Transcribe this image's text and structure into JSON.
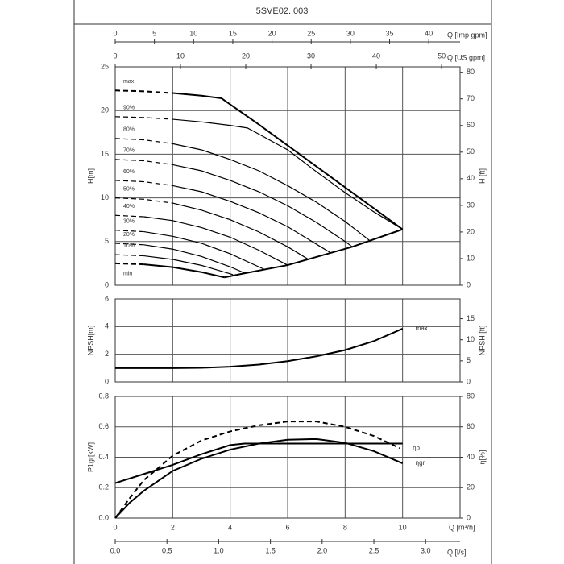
{
  "title": "5SVE02..003",
  "chart_data": [
    {
      "type": "line",
      "color": "#000000",
      "grid": true,
      "ylabel": "H[m]",
      "y2label": "H [ft]",
      "xlim": [
        0,
        12
      ],
      "xticks": [
        0,
        2,
        4,
        6,
        8,
        10
      ],
      "show_xtick_labels": false,
      "ylim": [
        0,
        25
      ],
      "yticks": [
        0,
        5,
        10,
        15,
        20,
        25
      ],
      "y2lim": [
        0,
        82.02
      ],
      "y2ticks": [
        0,
        10,
        20,
        30,
        40,
        50,
        60,
        70,
        80
      ],
      "top_axes": [
        {
          "label": "Q [Imp gpm]",
          "xlim": [
            0,
            43.99
          ],
          "xticks": [
            0,
            5,
            10,
            15,
            20,
            25,
            30,
            35,
            40
          ]
        },
        {
          "label": "Q [US gpm]",
          "xlim": [
            0,
            52.83
          ],
          "xticks": [
            0,
            10,
            20,
            30,
            40,
            50
          ]
        }
      ],
      "series": [
        {
          "name": "max",
          "x": [
            0,
            1,
            2,
            3,
            3.7,
            4,
            5,
            6,
            7,
            8,
            9,
            10
          ],
          "values": [
            22.3,
            22.2,
            22.0,
            21.7,
            21.4,
            20.7,
            18.4,
            16.0,
            13.6,
            11.2,
            8.8,
            6.4
          ],
          "dashed_to": 2,
          "line_width": 2
        },
        {
          "name": "90%",
          "x": [
            0,
            1,
            2,
            3,
            4,
            4.6,
            5,
            6,
            7,
            8,
            9,
            10
          ],
          "values": [
            19.3,
            19.2,
            19.0,
            18.7,
            18.3,
            18.0,
            17.3,
            15.5,
            13.0,
            10.6,
            8.4,
            6.4
          ],
          "dashed_to": 2,
          "line_width": 1.2
        },
        {
          "name": "80%",
          "x": [
            0,
            1,
            2,
            3,
            4,
            5,
            6,
            7,
            8,
            8.9
          ],
          "values": [
            16.8,
            16.65,
            16.2,
            15.5,
            14.4,
            13.1,
            11.4,
            9.5,
            7.3,
            5.0
          ],
          "dashed_to": 2,
          "line_width": 1.2
        },
        {
          "name": "70%",
          "x": [
            0,
            1,
            2,
            3,
            4,
            5,
            6,
            7,
            8,
            8.25
          ],
          "values": [
            14.4,
            14.25,
            13.8,
            13.1,
            12.0,
            10.7,
            9.1,
            7.2,
            5.0,
            4.4
          ],
          "dashed_to": 2,
          "line_width": 1.2
        },
        {
          "name": "60%",
          "x": [
            0,
            1,
            2,
            3,
            4,
            5,
            6,
            7,
            7.5
          ],
          "values": [
            12.0,
            11.85,
            11.4,
            10.7,
            9.6,
            8.3,
            6.7,
            4.7,
            3.7
          ],
          "dashed_to": 2,
          "line_width": 1.2
        },
        {
          "name": "50%",
          "x": [
            0,
            1,
            2,
            3,
            4,
            5,
            6,
            6.7
          ],
          "values": [
            10.0,
            9.84,
            9.4,
            8.6,
            7.5,
            6.1,
            4.4,
            3.0
          ],
          "dashed_to": 2,
          "line_width": 1.2
        },
        {
          "name": "40%",
          "x": [
            0,
            1,
            2,
            3,
            4,
            5,
            6
          ],
          "values": [
            8.0,
            7.84,
            7.4,
            6.6,
            5.5,
            4.0,
            2.3
          ],
          "dashed_to": 1,
          "line_width": 1.2
        },
        {
          "name": "30%",
          "x": [
            0,
            1,
            2,
            3,
            4,
            5,
            5.2
          ],
          "values": [
            6.3,
            6.13,
            5.6,
            4.8,
            3.6,
            2.1,
            1.8
          ],
          "dashed_to": 1,
          "line_width": 1.2
        },
        {
          "name": "20%",
          "x": [
            0,
            1,
            2,
            3,
            4,
            4.5
          ],
          "values": [
            4.8,
            4.63,
            4.13,
            3.29,
            2.11,
            1.4
          ],
          "dashed_to": 1,
          "line_width": 1.2
        },
        {
          "name": "10%",
          "x": [
            0,
            1,
            2,
            3,
            4,
            4.1
          ],
          "values": [
            3.5,
            3.36,
            2.95,
            2.27,
            1.31,
            1.2
          ],
          "dashed_to": 1,
          "line_width": 1.2
        },
        {
          "name": "min",
          "x": [
            0,
            1,
            2,
            3,
            3.8
          ],
          "values": [
            2.5,
            2.39,
            2.06,
            1.5,
            0.9
          ],
          "dashed_to": 1,
          "line_width": 2,
          "label_below": true
        },
        {
          "x": [
            3.8,
            4.4,
            6,
            8.25,
            10
          ],
          "values": [
            0.9,
            1.3,
            2.3,
            4.4,
            6.4
          ],
          "line_width": 2
        }
      ]
    },
    {
      "type": "line",
      "color": "#000000",
      "grid": true,
      "ylabel": "NPSH[m]",
      "y2label": "NPSH [ft]",
      "xlim": [
        0,
        12
      ],
      "xticks": [
        0,
        2,
        4,
        6,
        8,
        10
      ],
      "show_xtick_labels": false,
      "ylim": [
        0,
        6
      ],
      "yticks": [
        0,
        2,
        4,
        6
      ],
      "y2lim": [
        0,
        19.69
      ],
      "y2ticks": [
        0,
        5,
        10,
        15
      ],
      "series": [
        {
          "name": "max",
          "x": [
            0,
            2,
            3,
            4,
            5,
            6,
            7,
            8,
            9,
            10
          ],
          "values": [
            1.0,
            1.0,
            1.02,
            1.1,
            1.25,
            1.5,
            1.85,
            2.3,
            2.95,
            3.85
          ],
          "line_width": 2,
          "label_at": "end"
        }
      ]
    },
    {
      "type": "line",
      "color": "#000000",
      "grid": true,
      "ylabel": "P1gr[kW]",
      "y2label": "η[%]",
      "xlabel": "Q [m³/h]",
      "xlim": [
        0,
        12
      ],
      "xticks": [
        0,
        2,
        4,
        6,
        8,
        10
      ],
      "show_xtick_labels": true,
      "ylim": [
        0,
        0.8
      ],
      "yticks": [
        {
          "value": 0,
          "label": "0.0"
        },
        0.2,
        0.4,
        0.6,
        0.8
      ],
      "y2lim": [
        0,
        80
      ],
      "y2ticks": [
        0,
        20,
        40,
        60,
        80
      ],
      "bottom_axes": [
        {
          "label": "Q [l/s]",
          "xlim": [
            0,
            3.333
          ],
          "xticks": [
            {
              "value": 0,
              "label": "0.0"
            },
            0.5,
            {
              "value": 1,
              "label": "1.0"
            },
            1.5,
            {
              "value": 2,
              "label": "2.0"
            },
            2.5,
            {
              "value": 3,
              "label": "3.0"
            }
          ]
        }
      ],
      "series": [
        {
          "x": [
            0,
            1,
            2,
            3,
            4,
            4.5,
            10
          ],
          "values": [
            0.23,
            0.29,
            0.35,
            0.42,
            0.48,
            0.49,
            0.49
          ],
          "line_width": 2
        },
        {
          "name": "ηp",
          "axis": "y2",
          "x": [
            0,
            0.5,
            1,
            2,
            3,
            4,
            5,
            6,
            7,
            8,
            9,
            9.9
          ],
          "values": [
            0,
            13,
            25,
            41,
            51,
            57,
            61,
            63.5,
            63.5,
            60,
            54,
            46
          ],
          "dashed": true,
          "line_width": 2,
          "label_at": "end"
        },
        {
          "name": "ηgr",
          "axis": "y2",
          "x": [
            0,
            0.5,
            1,
            2,
            3,
            4,
            5,
            6,
            7,
            8,
            9,
            10
          ],
          "values": [
            0,
            10,
            18,
            31,
            39,
            45,
            49,
            51.5,
            52,
            49.5,
            44,
            36
          ],
          "line_width": 2,
          "label_at": "end"
        }
      ]
    }
  ]
}
